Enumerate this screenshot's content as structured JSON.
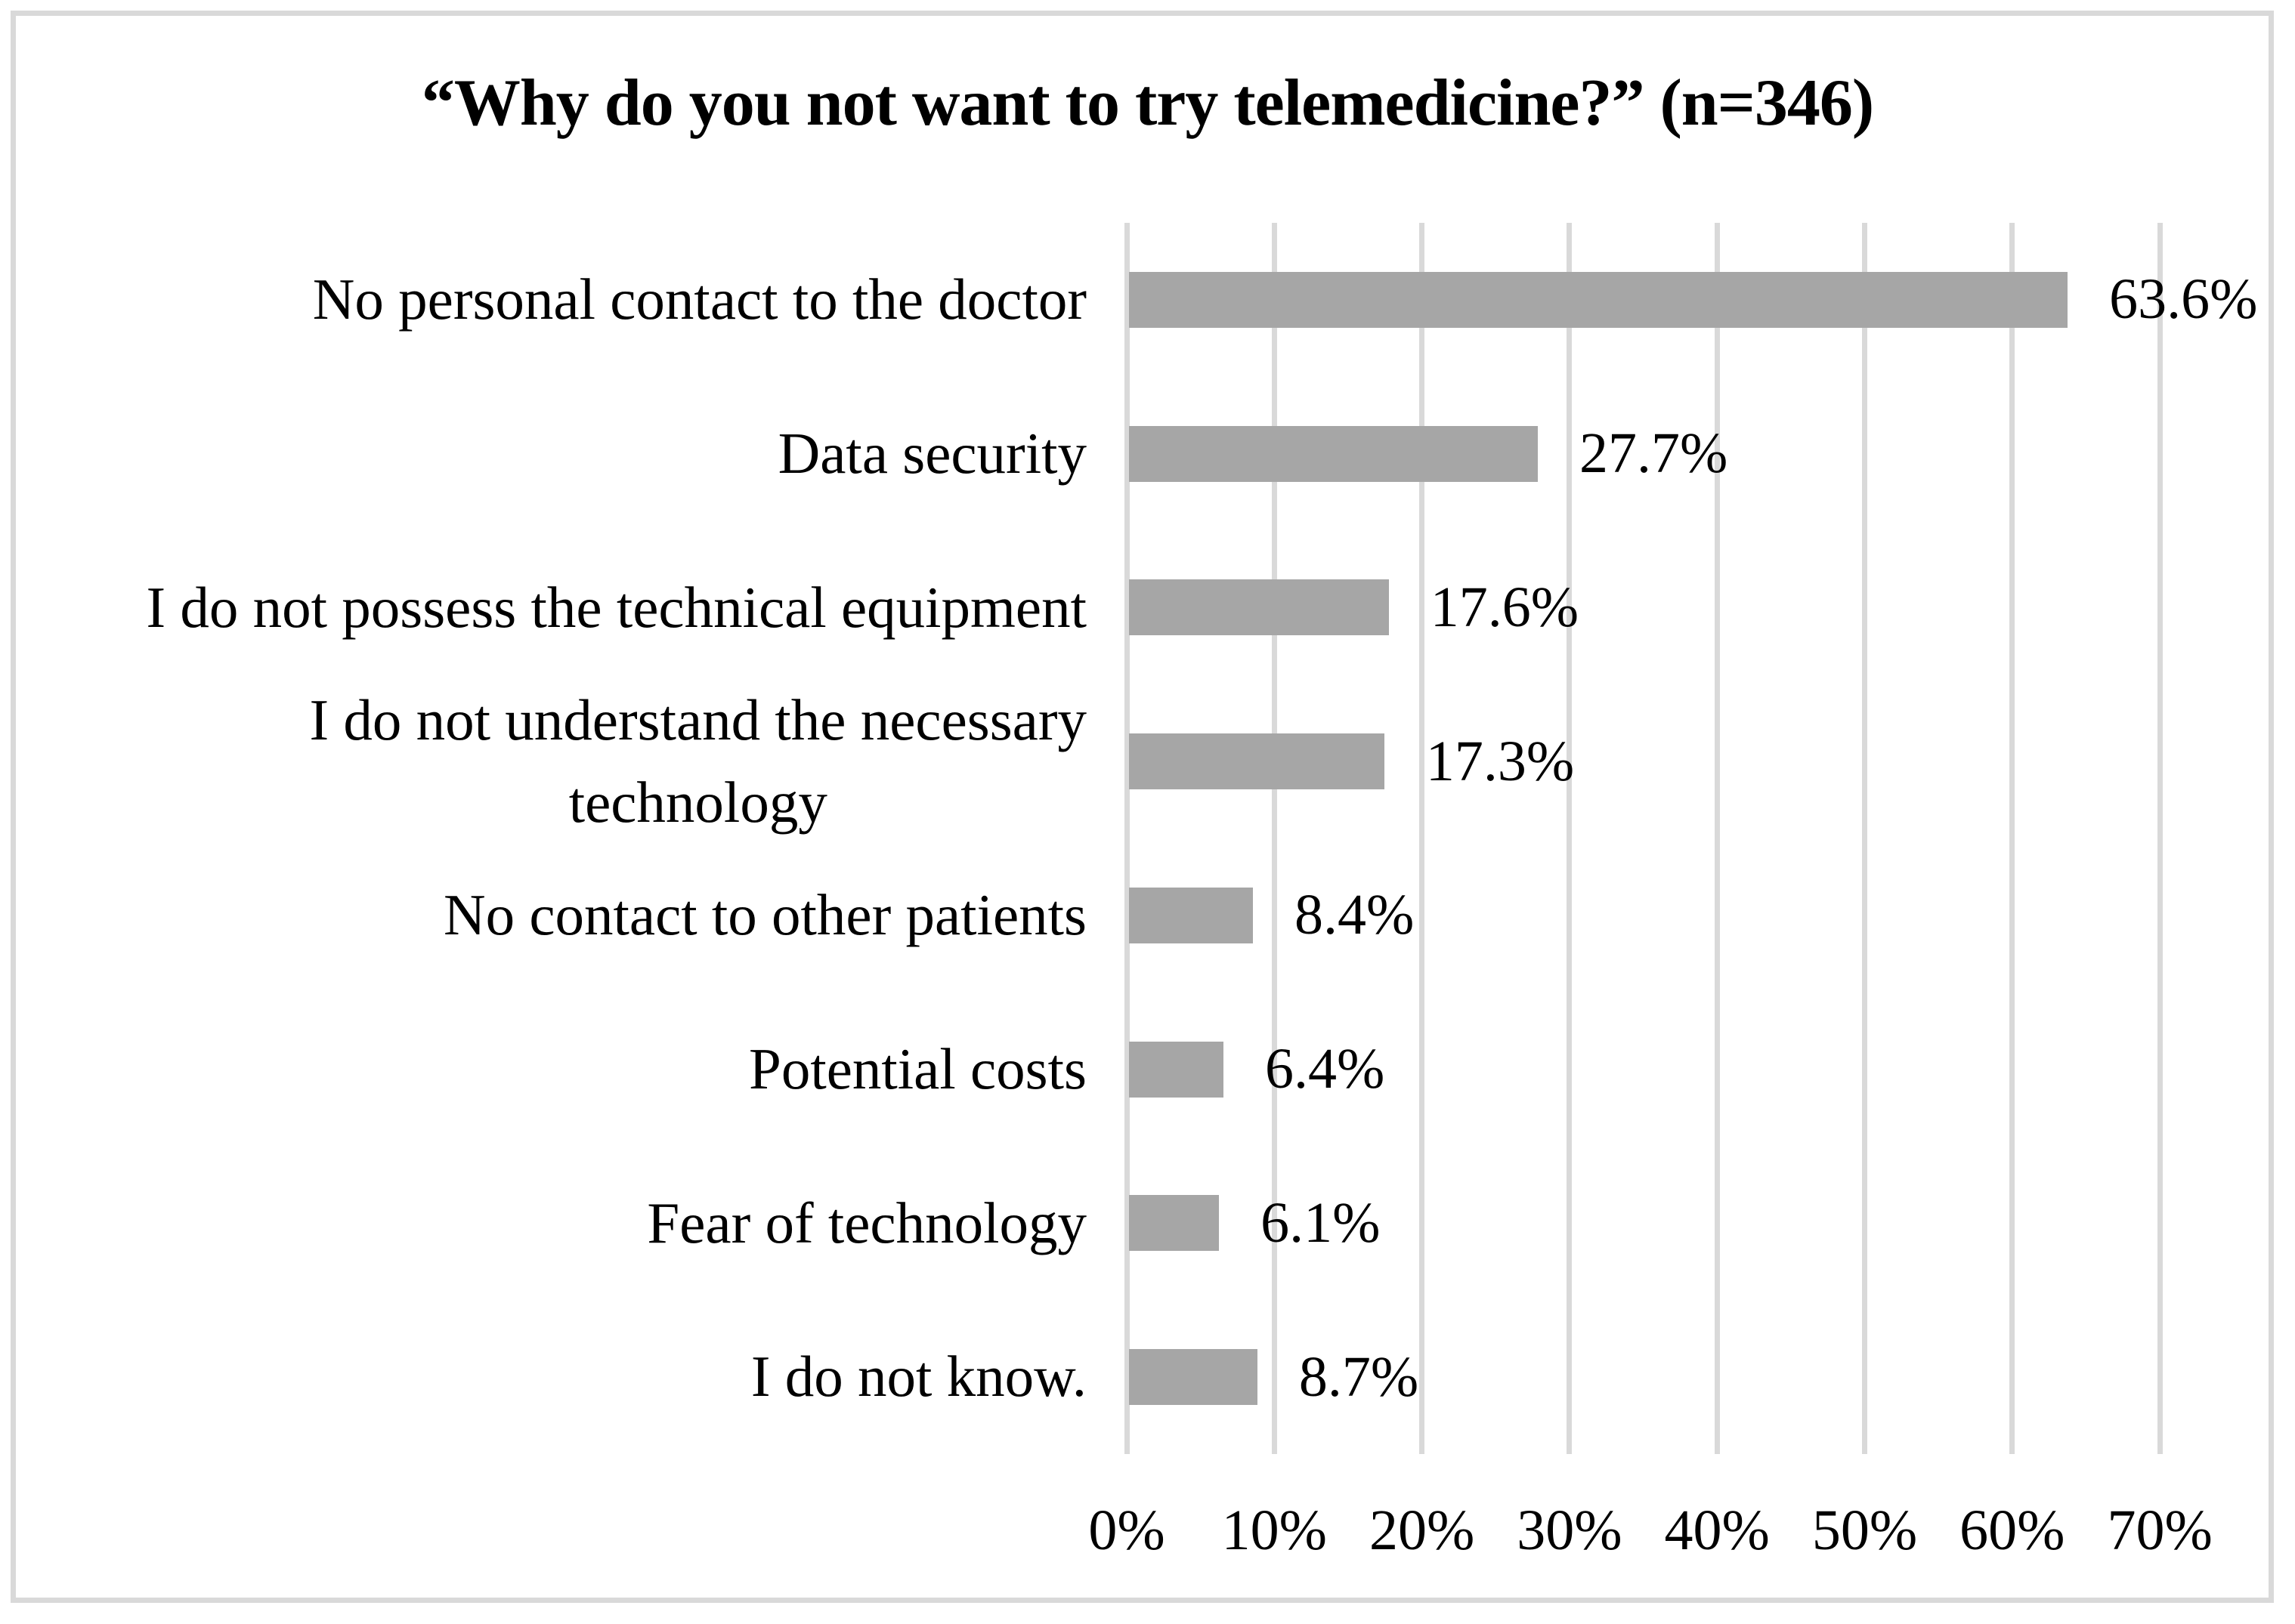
{
  "chart_data": {
    "type": "bar",
    "orientation": "horizontal",
    "title": "“Why do you not want to try telemedicine?” (n=346)",
    "categories": [
      "No personal contact to the doctor",
      "Data security",
      "I do not possess the technical equipment",
      "I do not understand the necessary\ntechnology",
      "No contact to other patients",
      "Potential costs",
      "Fear of technology",
      "I do not know."
    ],
    "values": [
      63.6,
      27.7,
      17.6,
      17.3,
      8.4,
      6.4,
      6.1,
      8.7
    ],
    "value_labels": [
      "63.6%",
      "27.7%",
      "17.6%",
      "17.3%",
      "8.4%",
      "6.4%",
      "6.1%",
      "8.7%"
    ],
    "xlabel": "",
    "ylabel": "",
    "xlim": [
      0,
      70
    ],
    "x_tick_values": [
      0,
      10,
      20,
      30,
      40,
      50,
      60,
      70
    ],
    "x_tick_labels": [
      "0%",
      "10%",
      "20%",
      "30%",
      "40%",
      "50%",
      "60%",
      "70%"
    ],
    "grid": "vertical",
    "legend_position": "none",
    "colors": {
      "bar": "#a6a6a6",
      "gridline": "#d9d9d9",
      "figure_border": "#d9d9d9",
      "text": "#000000",
      "background": "#ffffff"
    }
  }
}
